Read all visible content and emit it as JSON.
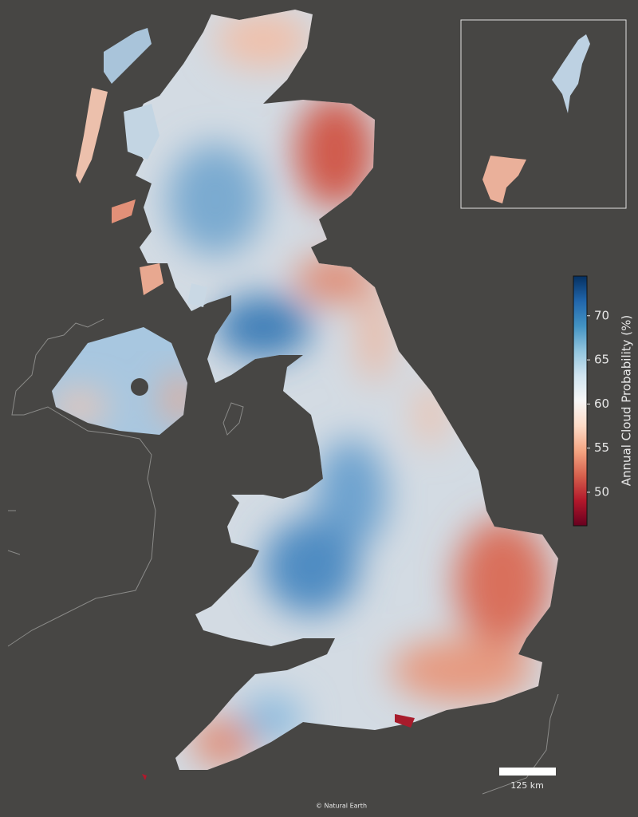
{
  "map": {
    "colorbar": {
      "label": "Annual Cloud Probability (%)",
      "lim": [
        46.2,
        74.5
      ],
      "ticks": [
        50,
        55,
        60,
        65,
        70
      ],
      "colormap": [
        "#67001f",
        "#b2182b",
        "#d6604d",
        "#f4a582",
        "#fddbc7",
        "#f7f7f7",
        "#d1e5f0",
        "#92c5de",
        "#4393c3",
        "#2166ac",
        "#053061"
      ]
    },
    "scale_bar": {
      "label": "125 km"
    },
    "credit": "© Natural Earth"
  }
}
